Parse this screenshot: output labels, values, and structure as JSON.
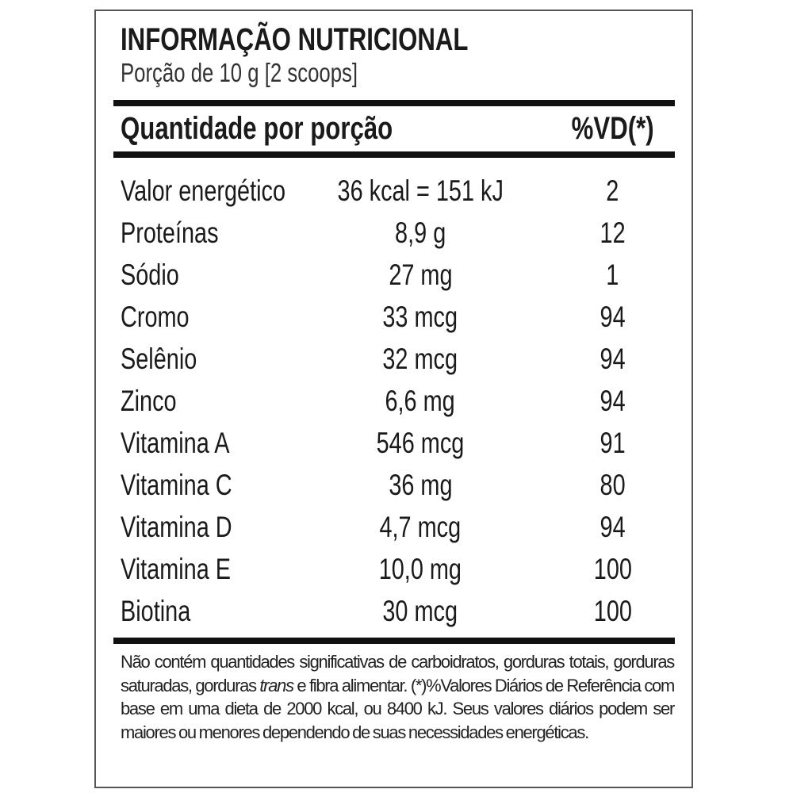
{
  "title": "INFORMAÇÃO NUTRICIONAL",
  "serving": "Porção de 10 g  [2 scoops]",
  "header": {
    "quantity": "Quantidade por porção",
    "dv": "%VD(*)"
  },
  "rows": [
    {
      "name": "Valor energético",
      "amount": "36 kcal = 151 kJ",
      "dv": "2"
    },
    {
      "name": "Proteínas",
      "amount": "8,9 g",
      "dv": "12"
    },
    {
      "name": "Sódio",
      "amount": "27 mg",
      "dv": "1"
    },
    {
      "name": "Cromo",
      "amount": "33 mcg",
      "dv": "94"
    },
    {
      "name": "Selênio",
      "amount": "32 mcg",
      "dv": "94"
    },
    {
      "name": "Zinco",
      "amount": "6,6 mg",
      "dv": "94"
    },
    {
      "name": "Vitamina A",
      "amount": "546 mcg",
      "dv": "91"
    },
    {
      "name": "Vitamina C",
      "amount": "36 mg",
      "dv": "80"
    },
    {
      "name": "Vitamina D",
      "amount": "4,7 mcg",
      "dv": "94"
    },
    {
      "name": "Vitamina E",
      "amount": "10,0 mg",
      "dv": "100"
    },
    {
      "name": "Biotina",
      "amount": "30 mcg",
      "dv": "100"
    }
  ],
  "footnote": {
    "part1": "Não contém quantidades significativas de carboidratos, gorduras totais, gorduras saturadas, gorduras ",
    "italic": "trans",
    "part2": " e fibra alimentar. (*)%Valores Diários de Referência com base em uma dieta de 2000 kcal, ou 8400 kJ. Seus valores diários podem ser maiores ou menores dependendo de suas necessidades energéticas."
  }
}
